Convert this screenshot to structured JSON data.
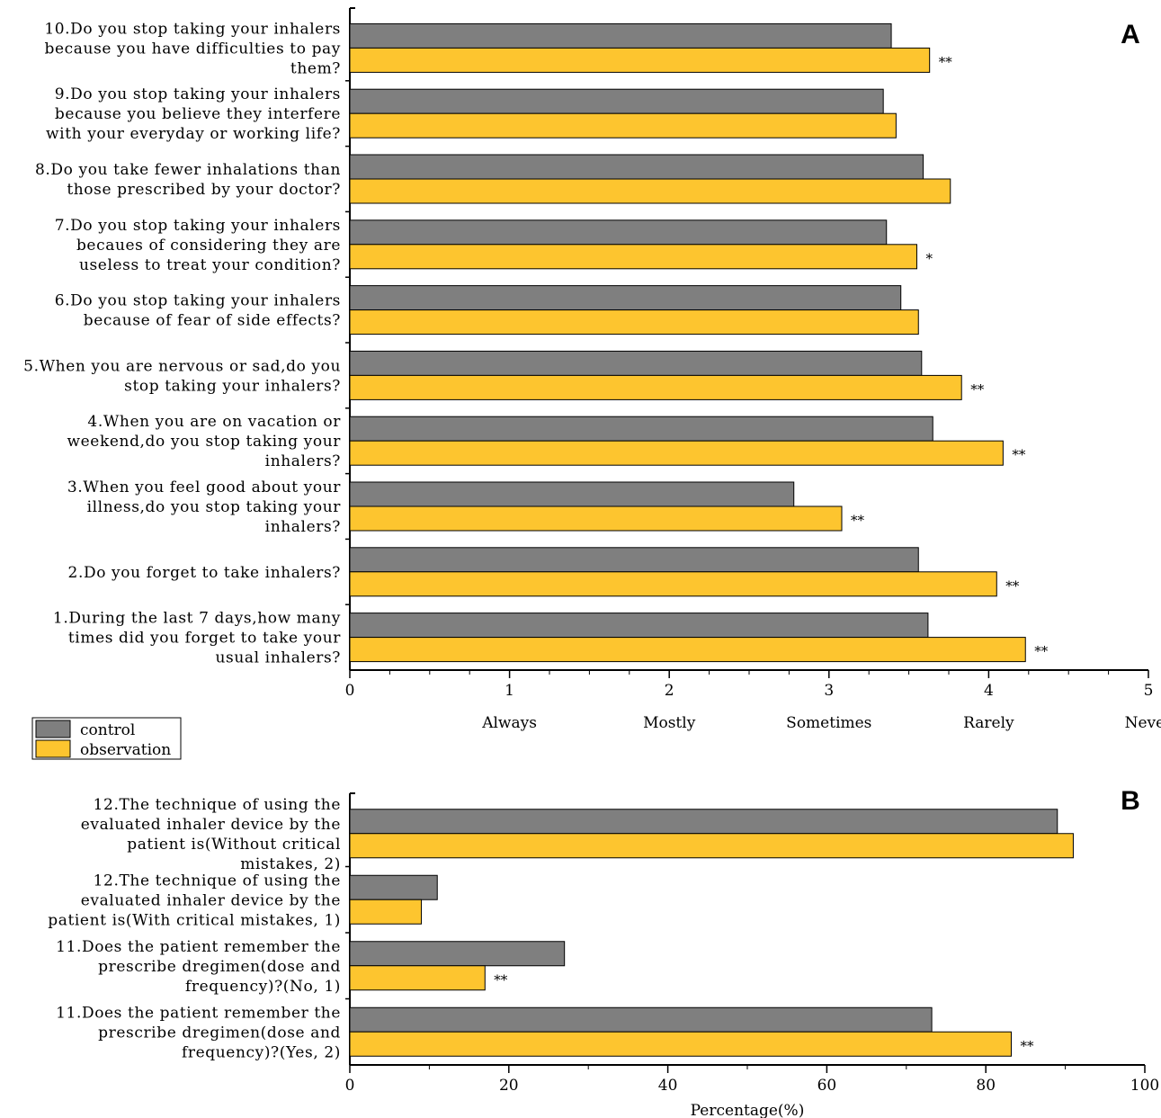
{
  "colors": {
    "control": "#7f7f7f",
    "observation": "#fdc52f",
    "axis": "#000000",
    "background": "#ffffff"
  },
  "legend": {
    "control": "control",
    "observation": "observation",
    "placement": "below panel A, left"
  },
  "chart_data": [
    {
      "panel": "A",
      "type": "bar",
      "orientation": "horizontal",
      "xlim": [
        0,
        5
      ],
      "x_ticks": [
        "0",
        "1",
        "2",
        "3",
        "4",
        "5"
      ],
      "x_category_labels": [
        "Always",
        "Mostly",
        "Sometimes",
        "Rarely",
        "Never"
      ],
      "categories": [
        "1.During the last 7 days,how many times did you forget to take your usual inhalers?",
        "2.Do you forget to take inhalers?",
        "3.When you feel good about your illness,do you stop taking your inhalers?",
        "4.When you are on vacation or weekend,do you stop taking your inhalers?",
        "5.When you are nervous or sad,do you stop taking your inhalers?",
        "6.Do you stop taking your inhalers because of fear of side effects?",
        "7.Do you stop taking your inhalers becaues of considering they are useless to treat your condition?",
        "8.Do you take fewer inhalations than those prescribed by your doctor?",
        "9.Do you stop taking your inhalers because you believe they interfere with your everyday or working life?",
        "10.Do you stop taking your inhalers because you have difficulties to pay them?"
      ],
      "category_lines": [
        [
          "1.During the last 7 days,how many",
          "times did you forget to take your",
          "usual inhalers?"
        ],
        [
          "2.Do you forget to take inhalers?"
        ],
        [
          "3.When you feel good about your",
          "illness,do you stop taking your",
          "inhalers?"
        ],
        [
          "4.When you are on vacation or",
          "weekend,do you stop taking your",
          "inhalers?"
        ],
        [
          "5.When you are nervous or sad,do you",
          "stop taking your inhalers?"
        ],
        [
          "6.Do you stop taking your inhalers",
          "because of fear of side effects?"
        ],
        [
          "7.Do you stop taking your inhalers",
          "becaues of considering they are",
          "useless to treat your condition?"
        ],
        [
          "8.Do you take fewer inhalations than",
          "those prescribed by your doctor?"
        ],
        [
          "9.Do you stop taking your inhalers",
          "because you believe they interfere",
          "with your everyday or working life?"
        ],
        [
          "10.Do you stop taking your inhalers",
          "because you have difficulties to pay",
          "them?"
        ]
      ],
      "series": [
        {
          "name": "control",
          "values": [
            3.62,
            3.56,
            2.78,
            3.65,
            3.58,
            3.45,
            3.36,
            3.59,
            3.34,
            3.39
          ]
        },
        {
          "name": "observation",
          "values": [
            4.23,
            4.05,
            3.08,
            4.09,
            3.83,
            3.56,
            3.55,
            3.76,
            3.42,
            3.63
          ]
        }
      ],
      "significance": [
        "**",
        "**",
        "**",
        "**",
        "**",
        "",
        "*",
        "",
        "",
        "**"
      ]
    },
    {
      "panel": "B",
      "type": "bar",
      "orientation": "horizontal",
      "xlim": [
        0,
        100
      ],
      "x_ticks": [
        "0",
        "20",
        "40",
        "60",
        "80",
        "100"
      ],
      "xlabel": "Percentage(%)",
      "categories": [
        "11.Does the patient remember the prescribe dregimen(dose and frequency)?(Yes, 2)",
        "11.Does the patient remember the prescribe dregimen(dose and frequency)?(No, 1)",
        "12.The technique of using the evaluated inhaler device by the patient is(With critical mistakes, 1)",
        "12.The technique of using the evaluated inhaler device by the patient is(Without critical mistakes, 2)"
      ],
      "category_lines": [
        [
          "11.Does the patient remember the",
          "prescribe dregimen(dose and",
          "frequency)?(Yes, 2)"
        ],
        [
          "11.Does the patient remember the",
          "prescribe dregimen(dose and",
          "frequency)?(No, 1)"
        ],
        [
          "12.The technique of using the",
          "evaluated inhaler device by the",
          "patient is(With critical mistakes, 1)"
        ],
        [
          "12.The technique of using the",
          "evaluated inhaler device by the",
          "patient is(Without critical",
          "mistakes, 2)"
        ]
      ],
      "series": [
        {
          "name": "control",
          "values": [
            73.2,
            27.0,
            11.0,
            89.0
          ]
        },
        {
          "name": "observation",
          "values": [
            83.2,
            17.0,
            9.0,
            91.0
          ]
        }
      ],
      "significance": [
        "**",
        "**",
        "",
        ""
      ]
    }
  ]
}
